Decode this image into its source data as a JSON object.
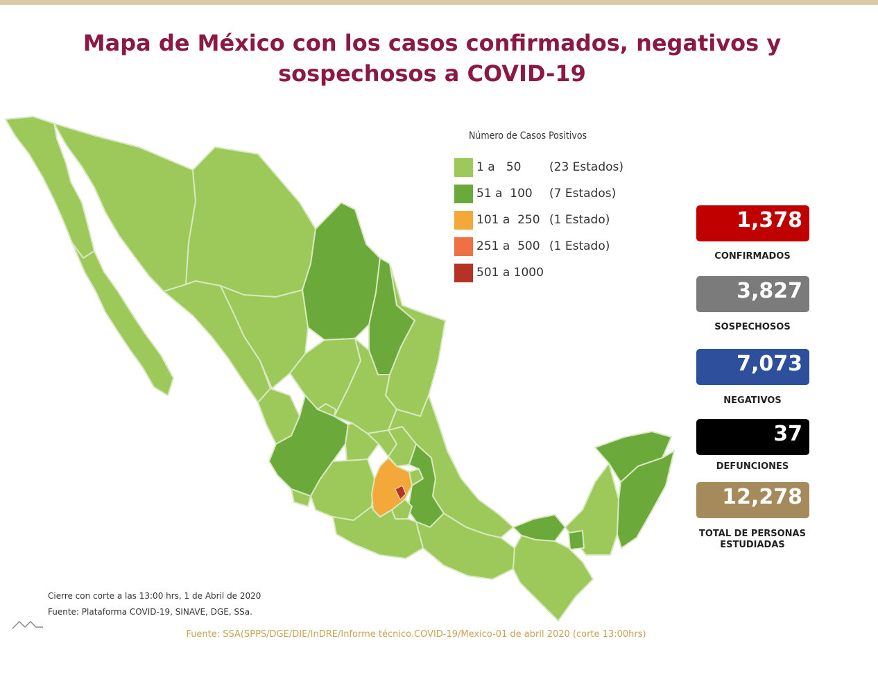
{
  "title": {
    "line1": "Mapa de México con los casos confirmados, negativos y",
    "line2": "sospechosos a COVID-19"
  },
  "legend": {
    "title": "Número de Casos Positivos",
    "items": [
      {
        "range": "1 a   50",
        "count": "(23 Estados)",
        "color": "#9dc95a"
      },
      {
        "range": "51 a  100",
        "count": "(7 Estados)",
        "color": "#6ba93a"
      },
      {
        "range": "101 a  250",
        "count": "(1 Estado)",
        "color": "#f5a83a"
      },
      {
        "range": "251 a  500",
        "count": "(1 Estado)",
        "color": "#ee7044"
      },
      {
        "range": "501 a 1000",
        "count": "",
        "color": "#b53325"
      }
    ]
  },
  "stats": [
    {
      "value": "1,378",
      "label": "CONFIRMADOS",
      "color": "#c00000"
    },
    {
      "value": "3,827",
      "label": "SOSPECHOSOS",
      "color": "#7b7b7b"
    },
    {
      "value": "7,073",
      "label": "NEGATIVOS",
      "color": "#2e4f9c"
    },
    {
      "value": "37",
      "label": "DEFUNCIONES",
      "color": "#000000"
    },
    {
      "value": "12,278",
      "label": "TOTAL DE PERSONAS ESTUDIADAS",
      "color": "#a58a5c"
    }
  ],
  "footnotes": {
    "cut": "Cierre con corte a las 13:00 hrs, 1 de Abril de 2020",
    "source": "Fuente: Plataforma COVID-19, SINAVE, DGE, SSa."
  },
  "source_line": "Fuente: SSA(SPPS/DGE/DIE/InDRE/Informe técnico.COVID-19/Mexico-01 de abril 2020 (corte 13:00hrs)",
  "colors": {
    "title": "#8a1a45",
    "light_green": "#9dc95a",
    "mid_green": "#6ba93a",
    "orange": "#f5a83a",
    "dark_red": "#b53325",
    "state_border": "#d8e8c0",
    "top_bar": "#d9cba8"
  }
}
